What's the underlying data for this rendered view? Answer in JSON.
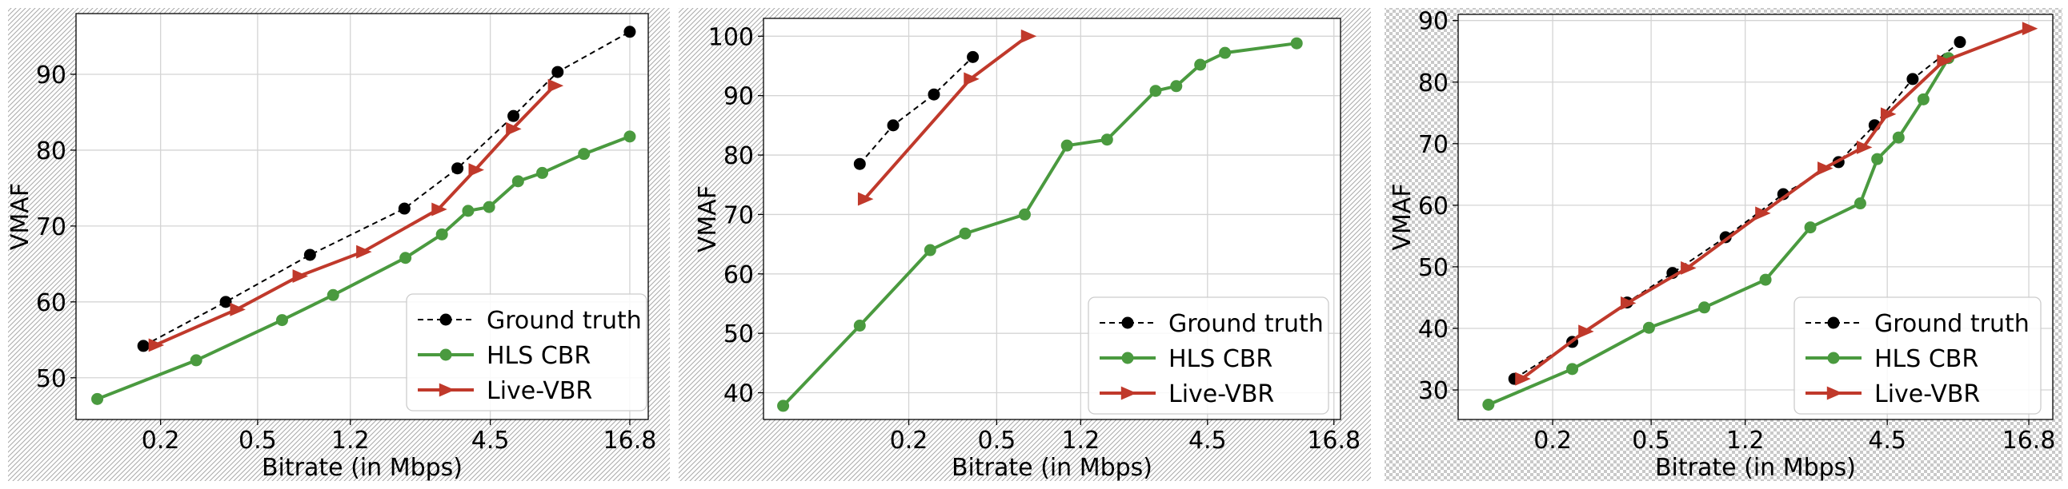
{
  "chart_data": [
    {
      "type": "line",
      "xscale": "log",
      "xlabel": "Bitrate (in Mbps)",
      "ylabel": "VMAF",
      "xticks": [
        0.2,
        0.5,
        1.2,
        4.5,
        16.8
      ],
      "xtick_labels": [
        "0.2",
        "0.5",
        "1.2",
        "4.5",
        "16.8"
      ],
      "xlim": [
        0.09,
        20
      ],
      "ylim": [
        44.5,
        98
      ],
      "yticks": [
        50,
        60,
        70,
        80,
        90
      ],
      "grid": true,
      "legend_position": "lower-right",
      "series": [
        {
          "name": "Ground truth",
          "color": "#000000",
          "style": "dashed",
          "marker": "circle",
          "x": [
            0.17,
            0.37,
            0.82,
            2.0,
            3.3,
            5.6,
            8.5,
            16.8
          ],
          "y": [
            54.2,
            60.0,
            66.2,
            72.3,
            77.6,
            84.5,
            90.3,
            95.6
          ]
        },
        {
          "name": "HLS CBR",
          "color": "#4a9a3f",
          "style": "solid",
          "marker": "circle",
          "x": [
            0.11,
            0.28,
            0.63,
            1.02,
            2.02,
            2.85,
            3.65,
            4.45,
            5.85,
            7.35,
            10.9,
            16.8
          ],
          "y": [
            47.2,
            52.3,
            57.6,
            60.9,
            65.8,
            68.9,
            72.0,
            72.5,
            75.9,
            77.0,
            79.5,
            81.8
          ]
        },
        {
          "name": "Live-VBR",
          "color": "#c0392b",
          "style": "solid",
          "marker": "triangle-right",
          "x": [
            0.19,
            0.41,
            0.74,
            1.35,
            2.75,
            3.9,
            5.55,
            8.25
          ],
          "y": [
            54.3,
            59.0,
            63.4,
            66.6,
            72.2,
            77.4,
            82.8,
            88.5
          ]
        }
      ]
    },
    {
      "type": "line",
      "xscale": "log",
      "xlabel": "Bitrate (in Mbps)",
      "ylabel": "VMAF",
      "xticks": [
        0.2,
        0.5,
        1.2,
        4.5,
        16.8
      ],
      "xtick_labels": [
        "0.2",
        "0.5",
        "1.2",
        "4.5",
        "16.8"
      ],
      "xlim": [
        0.044,
        18
      ],
      "ylim": [
        35.5,
        103
      ],
      "yticks": [
        40,
        50,
        60,
        70,
        80,
        90,
        100
      ],
      "grid": true,
      "legend_position": "lower-right",
      "series": [
        {
          "name": "Ground truth",
          "color": "#000000",
          "style": "dashed",
          "marker": "circle",
          "x": [
            0.12,
            0.17,
            0.26,
            0.39
          ],
          "y": [
            78.5,
            85.0,
            90.2,
            96.5
          ]
        },
        {
          "name": "HLS CBR",
          "color": "#4a9a3f",
          "style": "solid",
          "marker": "circle",
          "x": [
            0.054,
            0.12,
            0.25,
            0.36,
            0.67,
            1.04,
            1.58,
            2.62,
            3.25,
            4.17,
            5.4,
            11.4
          ],
          "y": [
            37.8,
            51.3,
            64.0,
            66.8,
            70.0,
            81.6,
            82.6,
            90.8,
            91.6,
            95.2,
            97.2,
            98.8
          ]
        },
        {
          "name": "Live-VBR",
          "color": "#c0392b",
          "style": "solid",
          "marker": "triangle-right",
          "x": [
            0.126,
            0.38,
            0.69
          ],
          "y": [
            72.6,
            92.8,
            100.0
          ]
        }
      ]
    },
    {
      "type": "line",
      "xscale": "log",
      "xlabel": "Bitrate (in Mbps)",
      "ylabel": "VMAF",
      "xticks": [
        0.2,
        0.5,
        1.2,
        4.5,
        16.8
      ],
      "xtick_labels": [
        "0.2",
        "0.5",
        "1.2",
        "4.5",
        "16.8"
      ],
      "xlim": [
        0.083,
        21
      ],
      "ylim": [
        25.2,
        91
      ],
      "yticks": [
        30,
        40,
        50,
        60,
        70,
        80,
        90
      ],
      "grid": true,
      "legend_position": "lower-right",
      "series": [
        {
          "name": "Ground truth",
          "color": "#000000",
          "style": "dashed",
          "marker": "circle",
          "x": [
            0.14,
            0.24,
            0.4,
            0.61,
            1.0,
            1.71,
            2.86,
            4.0,
            5.7,
            8.85
          ],
          "y": [
            31.8,
            37.8,
            44.2,
            49.0,
            54.8,
            61.8,
            67.0,
            73.0,
            80.5,
            86.5
          ]
        },
        {
          "name": "HLS CBR",
          "color": "#4a9a3f",
          "style": "solid",
          "marker": "circle",
          "x": [
            0.11,
            0.24,
            0.49,
            0.82,
            1.45,
            2.2,
            3.5,
            4.1,
            5.0,
            6.3,
            7.95
          ],
          "y": [
            27.6,
            33.4,
            40.1,
            43.4,
            47.9,
            56.4,
            60.3,
            67.5,
            71.0,
            77.2,
            83.9
          ]
        },
        {
          "name": "Live-VBR",
          "color": "#c0392b",
          "style": "solid",
          "marker": "triangle-right",
          "x": [
            0.15,
            0.27,
            0.4,
            0.7,
            1.4,
            2.5,
            3.6,
            4.5,
            7.6,
            16.8
          ],
          "y": [
            31.8,
            39.5,
            44.1,
            49.8,
            58.7,
            66.0,
            69.4,
            74.8,
            83.4,
            88.7
          ]
        }
      ]
    }
  ]
}
